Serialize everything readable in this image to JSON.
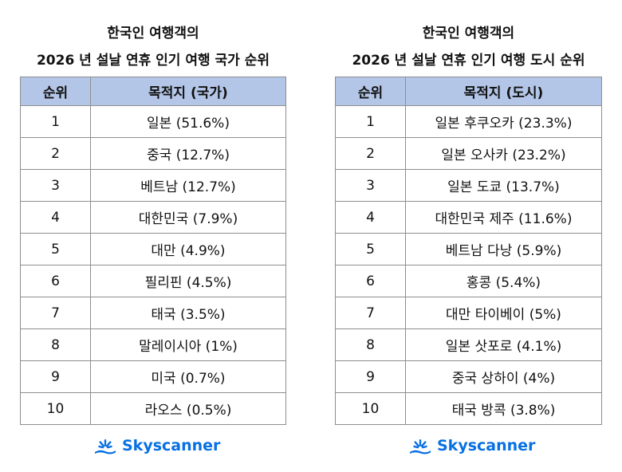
{
  "left": {
    "title_line1": "한국인 여행객의",
    "title_line2": "2026 년 설날 연휴 인기 여행 국가 순위",
    "headers": [
      "순위",
      "목적지 (국가)"
    ],
    "rows": [
      [
        "1",
        "일본 (51.6%)"
      ],
      [
        "2",
        "중국 (12.7%)"
      ],
      [
        "3",
        "베트남 (12.7%)"
      ],
      [
        "4",
        "대한민국 (7.9%)"
      ],
      [
        "5",
        "대만 (4.9%)"
      ],
      [
        "6",
        "필리핀 (4.5%)"
      ],
      [
        "7",
        "태국 (3.5%)"
      ],
      [
        "8",
        "말레이시아 (1%)"
      ],
      [
        "9",
        "미국 (0.7%)"
      ],
      [
        "10",
        "라오스 (0.5%)"
      ]
    ],
    "logo_text": "Skyscanner"
  },
  "right": {
    "title_line1": "한국인 여행객의",
    "title_line2": "2026 년 설날 연휴 인기 여행 도시 순위",
    "headers": [
      "순위",
      "목적지 (도시)"
    ],
    "rows": [
      [
        "1",
        "일본 후쿠오카 (23.3%)"
      ],
      [
        "2",
        "일본 오사카 (23.2%)"
      ],
      [
        "3",
        "일본 도쿄 (13.7%)"
      ],
      [
        "4",
        "대한민국 제주 (11.6%)"
      ],
      [
        "5",
        "베트남 다낭 (5.9%)"
      ],
      [
        "6",
        "홍콩 (5.4%)"
      ],
      [
        "7",
        "대만 타이베이 (5%)"
      ],
      [
        "8",
        "일본 삿포로 (4.1%)"
      ],
      [
        "9",
        "중국 상하이 (4%)"
      ],
      [
        "10",
        "태국 방콕 (3.8%)"
      ]
    ],
    "logo_text": "Skyscanner"
  },
  "colors": {
    "header_bg": "#b4c6e7",
    "border": "#8e8e8e",
    "brand": "#0770e3"
  },
  "icons": [
    "skyscanner-sunburst-icon"
  ]
}
